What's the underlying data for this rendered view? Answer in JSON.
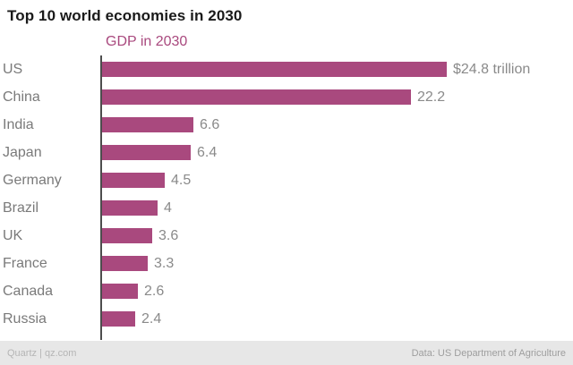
{
  "title": "Top 10 world economies in 2030",
  "series_label": "GDP in 2030",
  "footer": {
    "source_left": "Quartz | qz.com",
    "source_right": "Data: US Department of Agriculture"
  },
  "colors": {
    "bar": "#a9497e",
    "series_label": "#a9497e",
    "axis": "#4d4d4d",
    "category_text": "#7a7a7a",
    "value_text": "#8a8a8a",
    "footer_bg": "#e7e7e7"
  },
  "chart_data": {
    "type": "bar",
    "orientation": "horizontal",
    "title": "Top 10 world economies in 2030",
    "series_name": "GDP in 2030",
    "categories": [
      "US",
      "China",
      "India",
      "Japan",
      "Germany",
      "Brazil",
      "UK",
      "France",
      "Canada",
      "Russia"
    ],
    "values": [
      24.8,
      22.2,
      6.6,
      6.4,
      4.5,
      4,
      3.6,
      3.3,
      2.6,
      2.4
    ],
    "value_labels": [
      "$24.8 trillion",
      "22.2",
      "6.6",
      "6.4",
      "4.5",
      "4",
      "3.6",
      "3.3",
      "2.6",
      "2.4"
    ],
    "units": "trillion USD",
    "xlim": [
      0,
      24.8
    ],
    "grid": false,
    "legend_position": "top-left-as-colored-label"
  }
}
